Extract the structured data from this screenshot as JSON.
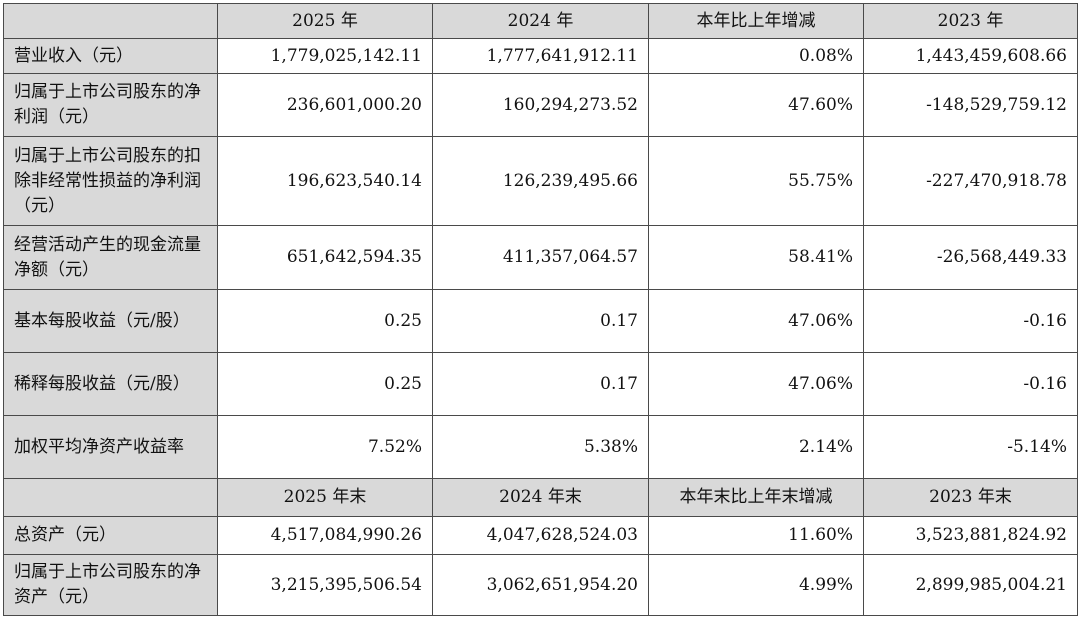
{
  "header1": [
    "2025 年",
    "2024 年",
    "本年比上年增减",
    "2023 年"
  ],
  "rows1": [
    {
      "label": "营业收入（元）",
      "values": [
        "1,779,025,142.11",
        "1,777,641,912.11",
        "0.08%",
        "1,443,459,608.66"
      ]
    },
    {
      "label": "归属于上市公司股东的净利润（元）",
      "values": [
        "236,601,000.20",
        "160,294,273.52",
        "47.60%",
        "-148,529,759.12"
      ]
    },
    {
      "label": "归属于上市公司股东的扣除非经常性损益的净利润（元）",
      "values": [
        "196,623,540.14",
        "126,239,495.66",
        "55.75%",
        "-227,470,918.78"
      ]
    },
    {
      "label": "经营活动产生的现金流量净额（元）",
      "values": [
        "651,642,594.35",
        "411,357,064.57",
        "58.41%",
        "-26,568,449.33"
      ]
    },
    {
      "label": "基本每股收益（元/股）",
      "values": [
        "0.25",
        "0.17",
        "47.06%",
        "-0.16"
      ]
    },
    {
      "label": "稀释每股收益（元/股）",
      "values": [
        "0.25",
        "0.17",
        "47.06%",
        "-0.16"
      ]
    },
    {
      "label": "加权平均净资产收益率",
      "values": [
        "7.52%",
        "5.38%",
        "2.14%",
        "-5.14%"
      ]
    }
  ],
  "header2": [
    "2025 年末",
    "2024 年末",
    "本年末比上年末增减",
    "2023 年末"
  ],
  "rows2": [
    {
      "label": "总资产（元）",
      "values": [
        "4,517,084,990.26",
        "4,047,628,524.03",
        "11.60%",
        "3,523,881,824.92"
      ]
    },
    {
      "label": "归属于上市公司股东的净资产（元）",
      "values": [
        "3,215,395,506.54",
        "3,062,651,954.20",
        "4.99%",
        "2,899,985,004.21"
      ]
    }
  ]
}
